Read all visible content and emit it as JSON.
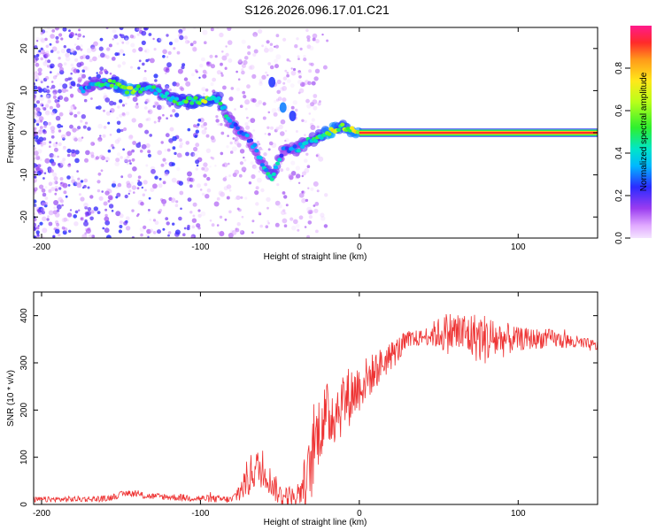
{
  "figure": {
    "title": "S126.2026.096.17.01.C21"
  },
  "chart_data": [
    {
      "type": "heatmap",
      "xlabel": "Height of straight line (km)",
      "ylabel": "Frequency (Hz)",
      "xlim": [
        -205,
        150
      ],
      "ylim": [
        -25,
        25
      ],
      "xticks": [
        -200,
        -100,
        0,
        100
      ],
      "xtick_labels": [
        "-200",
        "-100",
        "0",
        "100"
      ],
      "yticks": [
        -20,
        -10,
        0,
        10,
        20
      ],
      "ytick_labels": [
        "-20",
        "-10",
        "0",
        "10",
        "20"
      ],
      "colorbar": {
        "label": "Normalized spectral amplitude",
        "range": [
          0,
          1
        ],
        "ticks": [
          0.0,
          0.2,
          0.4,
          0.6,
          0.8
        ],
        "tick_labels": [
          "0.0",
          "0.2",
          "0.4",
          "0.6",
          "0.8"
        ]
      },
      "ridge": [
        {
          "x": -175,
          "y": 10,
          "a": 0.3
        },
        {
          "x": -168,
          "y": 11.5,
          "a": 0.35
        },
        {
          "x": -160,
          "y": 12,
          "a": 0.45
        },
        {
          "x": -150,
          "y": 11,
          "a": 0.6
        },
        {
          "x": -145,
          "y": 10,
          "a": 0.75
        },
        {
          "x": -138,
          "y": 10.5,
          "a": 0.55
        },
        {
          "x": -128,
          "y": 10,
          "a": 0.4
        },
        {
          "x": -115,
          "y": 7.5,
          "a": 0.5
        },
        {
          "x": -105,
          "y": 7.5,
          "a": 0.55
        },
        {
          "x": -95,
          "y": 8,
          "a": 0.6
        },
        {
          "x": -88,
          "y": 8,
          "a": 0.5
        },
        {
          "x": -82,
          "y": 3,
          "a": 0.35
        },
        {
          "x": -75,
          "y": 0,
          "a": 0.3
        },
        {
          "x": -68,
          "y": -2,
          "a": 0.3
        },
        {
          "x": -60,
          "y": -8,
          "a": 0.35
        },
        {
          "x": -55,
          "y": -11,
          "a": 0.45
        },
        {
          "x": -48,
          "y": -4,
          "a": 0.3
        },
        {
          "x": -40,
          "y": -4,
          "a": 0.35
        },
        {
          "x": -32,
          "y": -2,
          "a": 0.4
        },
        {
          "x": -25,
          "y": -1,
          "a": 0.5
        },
        {
          "x": -18,
          "y": 0.5,
          "a": 0.75
        },
        {
          "x": -12,
          "y": 1.5,
          "a": 0.55
        },
        {
          "x": -5,
          "y": 0.5,
          "a": 0.65
        },
        {
          "x": 0,
          "y": 0,
          "a": 0.7
        },
        {
          "x": 150,
          "y": 0,
          "a": 0.9
        }
      ],
      "branch": [
        {
          "x": -55,
          "y": 12,
          "a": 0.25
        },
        {
          "x": -48,
          "y": 6,
          "a": 0.3
        },
        {
          "x": -42,
          "y": 4,
          "a": 0.25
        }
      ],
      "scatter_region": {
        "x": [
          -205,
          -20
        ],
        "y": [
          -25,
          25
        ],
        "a_max": 0.25
      }
    },
    {
      "type": "line",
      "xlabel": "Height of straight line (km)",
      "ylabel": "SNR (10 * v/v)",
      "xlim": [
        -205,
        150
      ],
      "ylim": [
        0,
        450
      ],
      "xticks": [
        -200,
        -100,
        0,
        100
      ],
      "xtick_labels": [
        "-200",
        "-100",
        "0",
        "100"
      ],
      "yticks": [
        0,
        100,
        200,
        300,
        400
      ],
      "ytick_labels": [
        "0",
        "100",
        "200",
        "300",
        "400"
      ],
      "series": [
        {
          "color": "#ee3333",
          "trend": [
            {
              "x": -205,
              "y": 10
            },
            {
              "x": -160,
              "y": 12
            },
            {
              "x": -145,
              "y": 25
            },
            {
              "x": -135,
              "y": 18
            },
            {
              "x": -80,
              "y": 10
            },
            {
              "x": -75,
              "y": 30
            },
            {
              "x": -65,
              "y": 80
            },
            {
              "x": -58,
              "y": 60
            },
            {
              "x": -50,
              "y": 20
            },
            {
              "x": -40,
              "y": 15
            },
            {
              "x": -32,
              "y": 60
            },
            {
              "x": -25,
              "y": 170
            },
            {
              "x": -15,
              "y": 200
            },
            {
              "x": 0,
              "y": 250
            },
            {
              "x": 15,
              "y": 300
            },
            {
              "x": 30,
              "y": 345
            },
            {
              "x": 45,
              "y": 360
            },
            {
              "x": 60,
              "y": 365
            },
            {
              "x": 80,
              "y": 350
            },
            {
              "x": 100,
              "y": 350
            },
            {
              "x": 120,
              "y": 352
            },
            {
              "x": 150,
              "y": 335
            }
          ],
          "noise": [
            {
              "x": -205,
              "y": 6
            },
            {
              "x": -80,
              "y": 8
            },
            {
              "x": -70,
              "y": 45
            },
            {
              "x": -55,
              "y": 30
            },
            {
              "x": -40,
              "y": 20
            },
            {
              "x": -30,
              "y": 80
            },
            {
              "x": -10,
              "y": 70
            },
            {
              "x": 10,
              "y": 40
            },
            {
              "x": 40,
              "y": 15
            },
            {
              "x": 55,
              "y": 45
            },
            {
              "x": 80,
              "y": 55
            },
            {
              "x": 100,
              "y": 25
            },
            {
              "x": 150,
              "y": 12
            }
          ]
        }
      ]
    }
  ]
}
